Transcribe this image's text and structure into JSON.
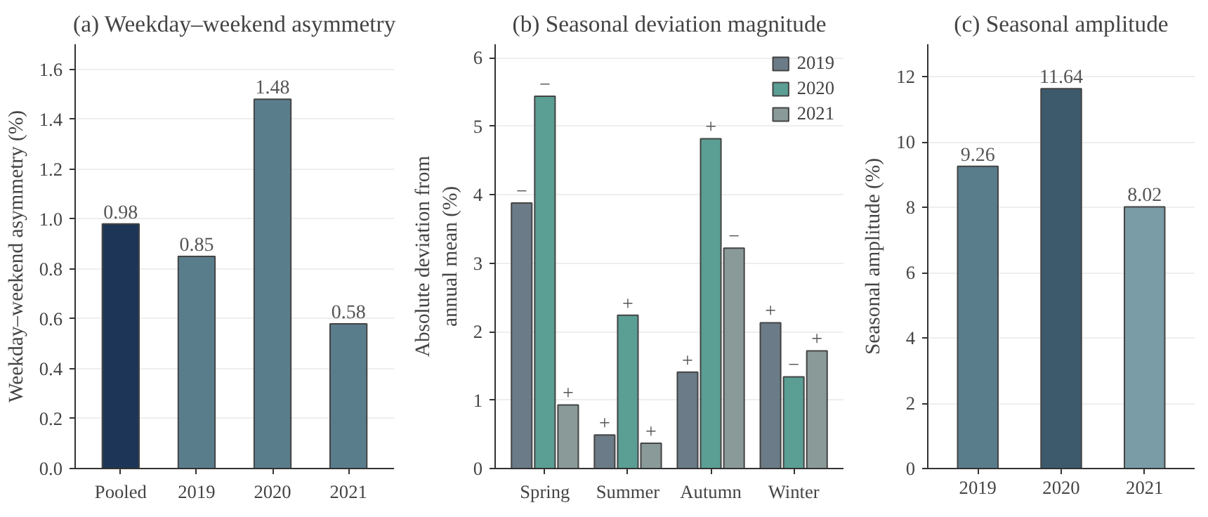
{
  "chart_data": [
    {
      "type": "bar",
      "title": "(a) Weekday–weekend asymmetry",
      "ylabel": "Weekday–weekend asymmetry (%)",
      "categories": [
        "Pooled",
        "2019",
        "2020",
        "2021"
      ],
      "values": [
        0.98,
        0.85,
        1.48,
        0.58
      ],
      "colors": [
        "#1d3557",
        "#5a7d8c",
        "#5a7d8c",
        "#5a7d8c"
      ],
      "ylim": [
        0,
        1.7
      ],
      "yticks": [
        {
          "value": 0,
          "label": "0.0"
        },
        0.2,
        0.4,
        0.6,
        0.8,
        {
          "value": 1,
          "label": "1.0"
        },
        1.2,
        1.4,
        1.6
      ],
      "grid": "y",
      "data_labels": true,
      "legend": false
    },
    {
      "type": "bar",
      "title": "(b) Seasonal deviation magnitude",
      "ylabel": "Absolute deviation from\nannual mean (%)",
      "categories": [
        "Spring",
        "Summer",
        "Autumn",
        "Winter"
      ],
      "series": [
        {
          "name": "2019",
          "color": "#6b7b87",
          "values": [
            3.88,
            0.49,
            1.41,
            2.13
          ],
          "value_labels": [
            "−",
            "+",
            "+",
            "+"
          ]
        },
        {
          "name": "2020",
          "color": "#5a9e94",
          "values": [
            5.44,
            2.24,
            4.82,
            1.34
          ],
          "value_labels": [
            "−",
            "+",
            "+",
            "−"
          ]
        },
        {
          "name": "2021",
          "color": "#8a9a98",
          "values": [
            0.93,
            0.37,
            3.22,
            1.72
          ],
          "value_labels": [
            "+",
            "+",
            "−",
            "+"
          ]
        }
      ],
      "ylim": [
        0,
        6.2
      ],
      "yticks": [
        0,
        1,
        2,
        3,
        4,
        5,
        6
      ],
      "grid": "y",
      "legend": "top right"
    },
    {
      "type": "bar",
      "title": "(c) Seasonal amplitude",
      "ylabel": "Seasonal amplitude (%)",
      "categories": [
        "2019",
        "2020",
        "2021"
      ],
      "values": [
        9.26,
        11.64,
        8.02
      ],
      "colors": [
        "#5a7d8c",
        "#3d5a6c",
        "#7a9ca6"
      ],
      "ylim": [
        0,
        13
      ],
      "yticks": [
        0,
        2,
        4,
        6,
        8,
        10,
        12
      ],
      "grid": "y",
      "data_labels": true,
      "legend": false
    }
  ]
}
